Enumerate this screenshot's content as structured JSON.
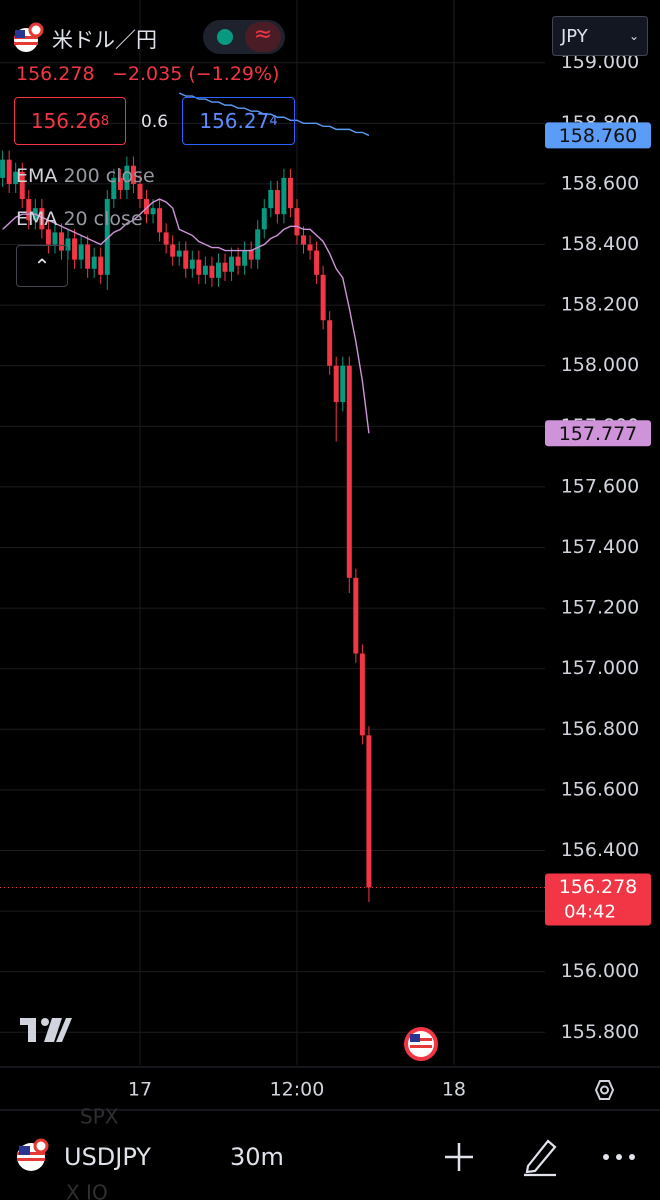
{
  "header": {
    "symbol_name": "米ドル／円",
    "currency": "JPY",
    "change": "−2.035 (−1.29%)",
    "sell": {
      "main": "156.26",
      "sup": "8"
    },
    "spread": "0.6",
    "buy": {
      "main": "156.27",
      "sup": "4"
    }
  },
  "indicators": [
    {
      "name": "EMA",
      "params": "200 close"
    },
    {
      "name": "EMA",
      "params": "20 close"
    }
  ],
  "chart_data": {
    "type": "candlestick",
    "up_color": "#089981",
    "down_color": "#f23645",
    "x": [
      -10.5,
      -10,
      -9.5,
      -9,
      -8.5,
      -8,
      -7.5,
      -7,
      -6.5,
      -6,
      -5.5,
      -5,
      -4.5,
      -4,
      -3.5,
      -3,
      -2.5,
      -2,
      -1.5,
      -1,
      -0.5,
      0,
      0.5,
      1,
      1.5,
      2,
      2.5,
      3,
      3.5,
      4,
      4.5,
      5,
      5.5,
      6,
      6.5,
      7,
      7.5,
      8,
      8.5,
      9,
      9.5,
      10,
      10.5,
      11,
      11.5,
      12,
      12.5,
      13,
      13.5,
      14,
      14.5,
      15,
      15.5,
      16,
      16.5,
      17,
      17.5
    ],
    "open": [
      158.62,
      158.68,
      158.6,
      158.64,
      158.55,
      158.48,
      158.52,
      158.45,
      158.4,
      158.44,
      158.38,
      158.42,
      158.35,
      158.4,
      158.32,
      158.36,
      158.3,
      158.55,
      158.62,
      158.58,
      158.66,
      158.6,
      158.55,
      158.5,
      158.52,
      158.44,
      158.4,
      158.36,
      158.38,
      158.32,
      158.35,
      158.3,
      158.33,
      158.29,
      158.34,
      158.31,
      158.36,
      158.33,
      158.38,
      158.35,
      158.45,
      158.52,
      158.58,
      158.5,
      158.62,
      158.52,
      158.43,
      158.4,
      158.38,
      158.3,
      158.15,
      158.0,
      157.88,
      158.0,
      157.3,
      157.05,
      156.78
    ],
    "high": [
      158.71,
      158.71,
      158.67,
      158.67,
      158.58,
      158.55,
      158.55,
      158.48,
      158.47,
      158.47,
      158.45,
      158.45,
      158.43,
      158.43,
      158.39,
      158.39,
      158.58,
      158.65,
      158.65,
      158.69,
      158.69,
      158.63,
      158.58,
      158.55,
      158.55,
      158.47,
      158.43,
      158.41,
      158.41,
      158.38,
      158.38,
      158.36,
      158.36,
      158.37,
      158.37,
      158.39,
      158.39,
      158.41,
      158.41,
      158.48,
      158.55,
      158.61,
      158.61,
      158.65,
      158.65,
      158.55,
      158.46,
      158.43,
      158.41,
      158.33,
      158.18,
      158.03,
      158.03,
      158.03,
      157.33,
      157.08,
      156.81
    ],
    "low": [
      158.59,
      158.57,
      158.57,
      158.52,
      158.45,
      158.45,
      158.42,
      158.37,
      158.37,
      158.35,
      158.35,
      158.32,
      158.32,
      158.29,
      158.29,
      158.27,
      158.25,
      158.52,
      158.55,
      158.55,
      158.57,
      158.52,
      158.47,
      158.47,
      158.41,
      158.37,
      158.33,
      158.33,
      158.29,
      158.29,
      158.27,
      158.27,
      158.26,
      158.26,
      158.28,
      158.28,
      158.3,
      158.3,
      158.32,
      158.32,
      158.42,
      158.49,
      158.47,
      158.47,
      158.49,
      158.4,
      158.37,
      158.35,
      158.27,
      158.12,
      157.97,
      157.75,
      157.85,
      157.25,
      157.02,
      156.75,
      156.23
    ],
    "close": [
      158.68,
      158.6,
      158.64,
      158.55,
      158.48,
      158.52,
      158.45,
      158.4,
      158.44,
      158.38,
      158.42,
      158.35,
      158.4,
      158.32,
      158.36,
      158.3,
      158.55,
      158.62,
      158.58,
      158.66,
      158.6,
      158.55,
      158.5,
      158.52,
      158.44,
      158.4,
      158.36,
      158.38,
      158.32,
      158.35,
      158.3,
      158.33,
      158.29,
      158.34,
      158.31,
      158.36,
      158.33,
      158.38,
      158.35,
      158.45,
      158.52,
      158.58,
      158.5,
      158.62,
      158.52,
      158.43,
      158.4,
      158.38,
      158.3,
      158.15,
      158.0,
      157.88,
      158.0,
      157.3,
      157.05,
      156.78,
      156.278
    ],
    "countdown": "04:42",
    "series": [
      {
        "name": "EMA 200",
        "color": "#5b9cf6",
        "values": [
          null,
          null,
          null,
          null,
          null,
          null,
          null,
          null,
          null,
          null,
          null,
          null,
          null,
          null,
          null,
          null,
          null,
          null,
          null,
          null,
          null,
          null,
          null,
          null,
          null,
          null,
          null,
          158.9,
          158.89,
          158.89,
          158.88,
          158.88,
          158.87,
          158.87,
          158.86,
          158.86,
          158.85,
          158.85,
          158.84,
          158.84,
          158.83,
          158.83,
          158.82,
          158.82,
          158.81,
          158.81,
          158.8,
          158.8,
          158.8,
          158.79,
          158.79,
          158.78,
          158.78,
          158.78,
          158.77,
          158.77,
          158.76
        ],
        "value_labels": [
          null,
          null,
          null,
          null,
          null,
          null,
          null,
          null,
          null,
          null,
          null,
          null,
          null,
          null,
          null,
          null,
          null,
          null,
          null,
          null,
          null,
          null,
          null,
          null,
          null,
          null,
          null,
          null,
          null,
          null,
          null,
          null,
          null,
          null,
          null,
          null,
          null,
          null,
          null,
          null,
          null,
          null,
          null,
          null,
          null,
          null,
          null,
          null,
          null,
          null,
          null,
          null,
          null,
          null,
          null,
          null,
          "158.760"
        ]
      },
      {
        "name": "EMA 20",
        "color": "#ce93d8",
        "values": [
          158.45,
          158.47,
          158.49,
          158.5,
          158.5,
          158.5,
          158.49,
          158.48,
          158.47,
          158.46,
          158.45,
          158.44,
          158.43,
          158.42,
          158.41,
          158.4,
          158.42,
          158.44,
          158.45,
          158.47,
          158.48,
          158.5,
          158.52,
          158.54,
          158.55,
          158.54,
          158.52,
          158.45,
          158.44,
          158.43,
          158.41,
          158.4,
          158.39,
          158.39,
          158.38,
          158.38,
          158.38,
          158.38,
          158.38,
          158.39,
          158.4,
          158.42,
          158.43,
          158.45,
          158.46,
          158.46,
          158.45,
          158.45,
          158.43,
          158.41,
          158.37,
          158.32,
          158.29,
          158.19,
          158.08,
          157.95,
          157.777
        ]
      }
    ],
    "xlim": [
      -10.7,
      30.96
    ],
    "xticks": [
      {
        "value": 0,
        "label": "17"
      },
      {
        "value": 12,
        "label": "12:00"
      },
      {
        "value": 24,
        "label": "18"
      }
    ],
    "ylim": [
      155.692,
      159.207
    ],
    "yticks": [
      {
        "value": 155.8,
        "label": "155.800"
      },
      {
        "value": 156,
        "label": "156.000"
      },
      {
        "value": 156.2,
        "label": "156.200"
      },
      {
        "value": 156.4,
        "label": "156.400"
      },
      {
        "value": 156.6,
        "label": "156.600"
      },
      {
        "value": 156.8,
        "label": "156.800"
      },
      {
        "value": 157,
        "label": "157.000"
      },
      {
        "value": 157.2,
        "label": "157.200"
      },
      {
        "value": 157.4,
        "label": "157.400"
      },
      {
        "value": 157.6,
        "label": "157.600"
      },
      {
        "value": 157.8,
        "label": "157.800"
      },
      {
        "value": 158,
        "label": "158.000"
      },
      {
        "value": 158.2,
        "label": "158.200"
      },
      {
        "value": 158.4,
        "label": "158.400"
      },
      {
        "value": 158.6,
        "label": "158.600"
      },
      {
        "value": 158.8,
        "label": "158.800"
      },
      {
        "value": 159,
        "label": "159.000"
      }
    ],
    "grid": true
  },
  "footer": {
    "symbol": "USDJPY",
    "interval": "30m",
    "ghost": [
      "SPX",
      "X IO"
    ]
  }
}
